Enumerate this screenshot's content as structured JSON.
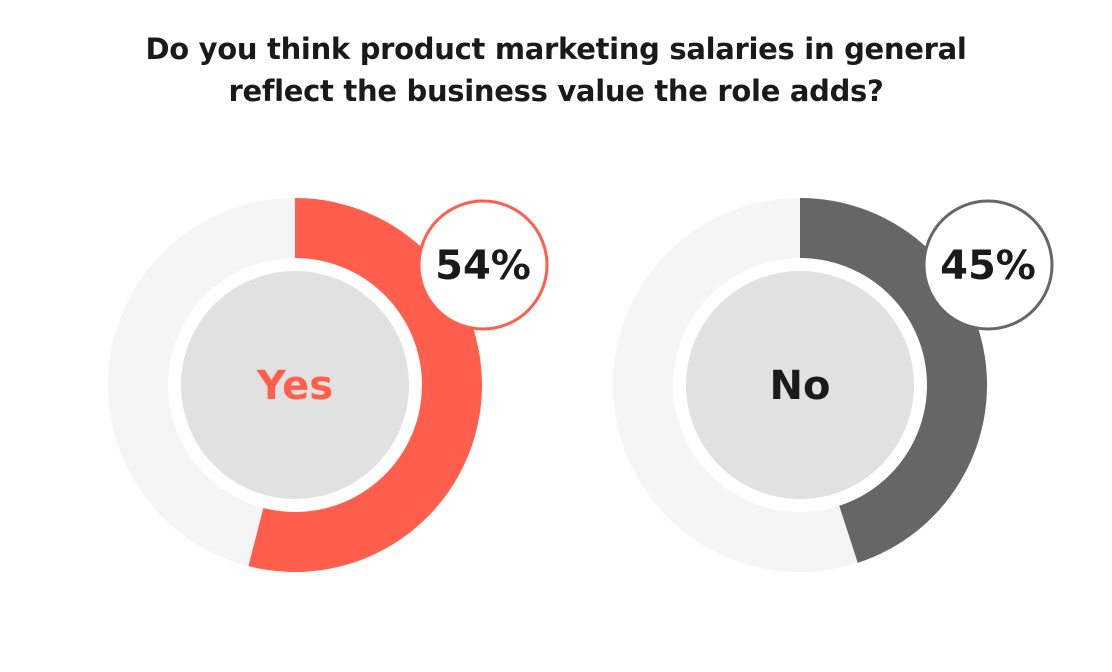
{
  "title_lines": [
    "Do you think product marketing salaries in general",
    "reflect the business value the role adds?"
  ],
  "chart_data": {
    "type": "pie",
    "title": "Do you think product marketing salaries in general reflect the business value the role adds?",
    "categories": [
      "Yes",
      "No"
    ],
    "values": [
      54,
      45
    ],
    "value_labels": [
      "54%",
      "45%"
    ],
    "colors": [
      "#ff5e4d",
      "#666666"
    ],
    "track_color": "#f5f5f5",
    "center_color": "#e1e1e1",
    "label_colors": [
      "#ff5e4d",
      "#1a1a1a"
    ]
  }
}
